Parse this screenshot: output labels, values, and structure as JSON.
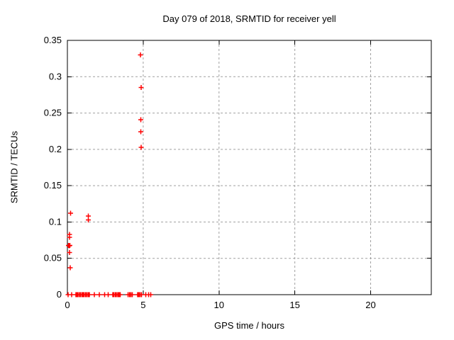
{
  "colors": {
    "marker": "#ff0000",
    "grid": "#a0a0a0",
    "axis": "#000000",
    "background": "#ffffff",
    "text": "#000000"
  },
  "chart_data": {
    "type": "scatter",
    "title": "Day 079 of 2018, SRMTID for receiver yell",
    "xlabel": "GPS time / hours",
    "ylabel": "SRMTID / TECUs",
    "xlim": [
      0,
      24
    ],
    "ylim": [
      0,
      0.35
    ],
    "grid": true,
    "legend": "none",
    "marker": "plus",
    "marker_color": "#ff0000",
    "x_ticks": [
      {
        "value": 0,
        "label": "0"
      },
      {
        "value": 5,
        "label": "5"
      },
      {
        "value": 10,
        "label": "10"
      },
      {
        "value": 15,
        "label": "15"
      },
      {
        "value": 20,
        "label": "20"
      }
    ],
    "y_ticks": [
      {
        "value": 0.0,
        "label": "0"
      },
      {
        "value": 0.05,
        "label": "0.05"
      },
      {
        "value": 0.1,
        "label": "0.1"
      },
      {
        "value": 0.15,
        "label": "0.15"
      },
      {
        "value": 0.2,
        "label": "0.2"
      },
      {
        "value": 0.25,
        "label": "0.25"
      },
      {
        "value": 0.3,
        "label": "0.3"
      },
      {
        "value": 0.35,
        "label": "0.35"
      }
    ],
    "series": [
      {
        "name": "SRMTID",
        "color": "#ff0000",
        "points": [
          [
            0.22,
            0.112
          ],
          [
            1.38,
            0.108
          ],
          [
            1.38,
            0.103
          ],
          [
            0.14,
            0.083
          ],
          [
            0.15,
            0.079
          ],
          [
            0.08,
            0.068
          ],
          [
            0.12,
            0.0675
          ],
          [
            0.16,
            0.068
          ],
          [
            0.15,
            0.058
          ],
          [
            0.18,
            0.037
          ],
          [
            4.83,
            0.33
          ],
          [
            4.86,
            0.285
          ],
          [
            4.85,
            0.241
          ],
          [
            4.85,
            0.224
          ],
          [
            4.86,
            0.203
          ]
        ],
        "baseline_y": 0,
        "baseline_segments": [
          [
            0.0,
            0.1
          ],
          [
            0.2,
            0.35
          ],
          [
            0.4,
            1.6
          ],
          [
            1.72,
            1.82
          ],
          [
            1.95,
            2.25
          ],
          [
            2.37,
            2.52
          ],
          [
            2.65,
            2.75
          ],
          [
            2.84,
            3.64
          ],
          [
            3.86,
            4.42
          ],
          [
            4.47,
            5.05
          ],
          [
            5.12,
            5.24
          ],
          [
            5.31,
            5.4
          ],
          [
            5.43,
            5.55
          ]
        ]
      }
    ]
  }
}
